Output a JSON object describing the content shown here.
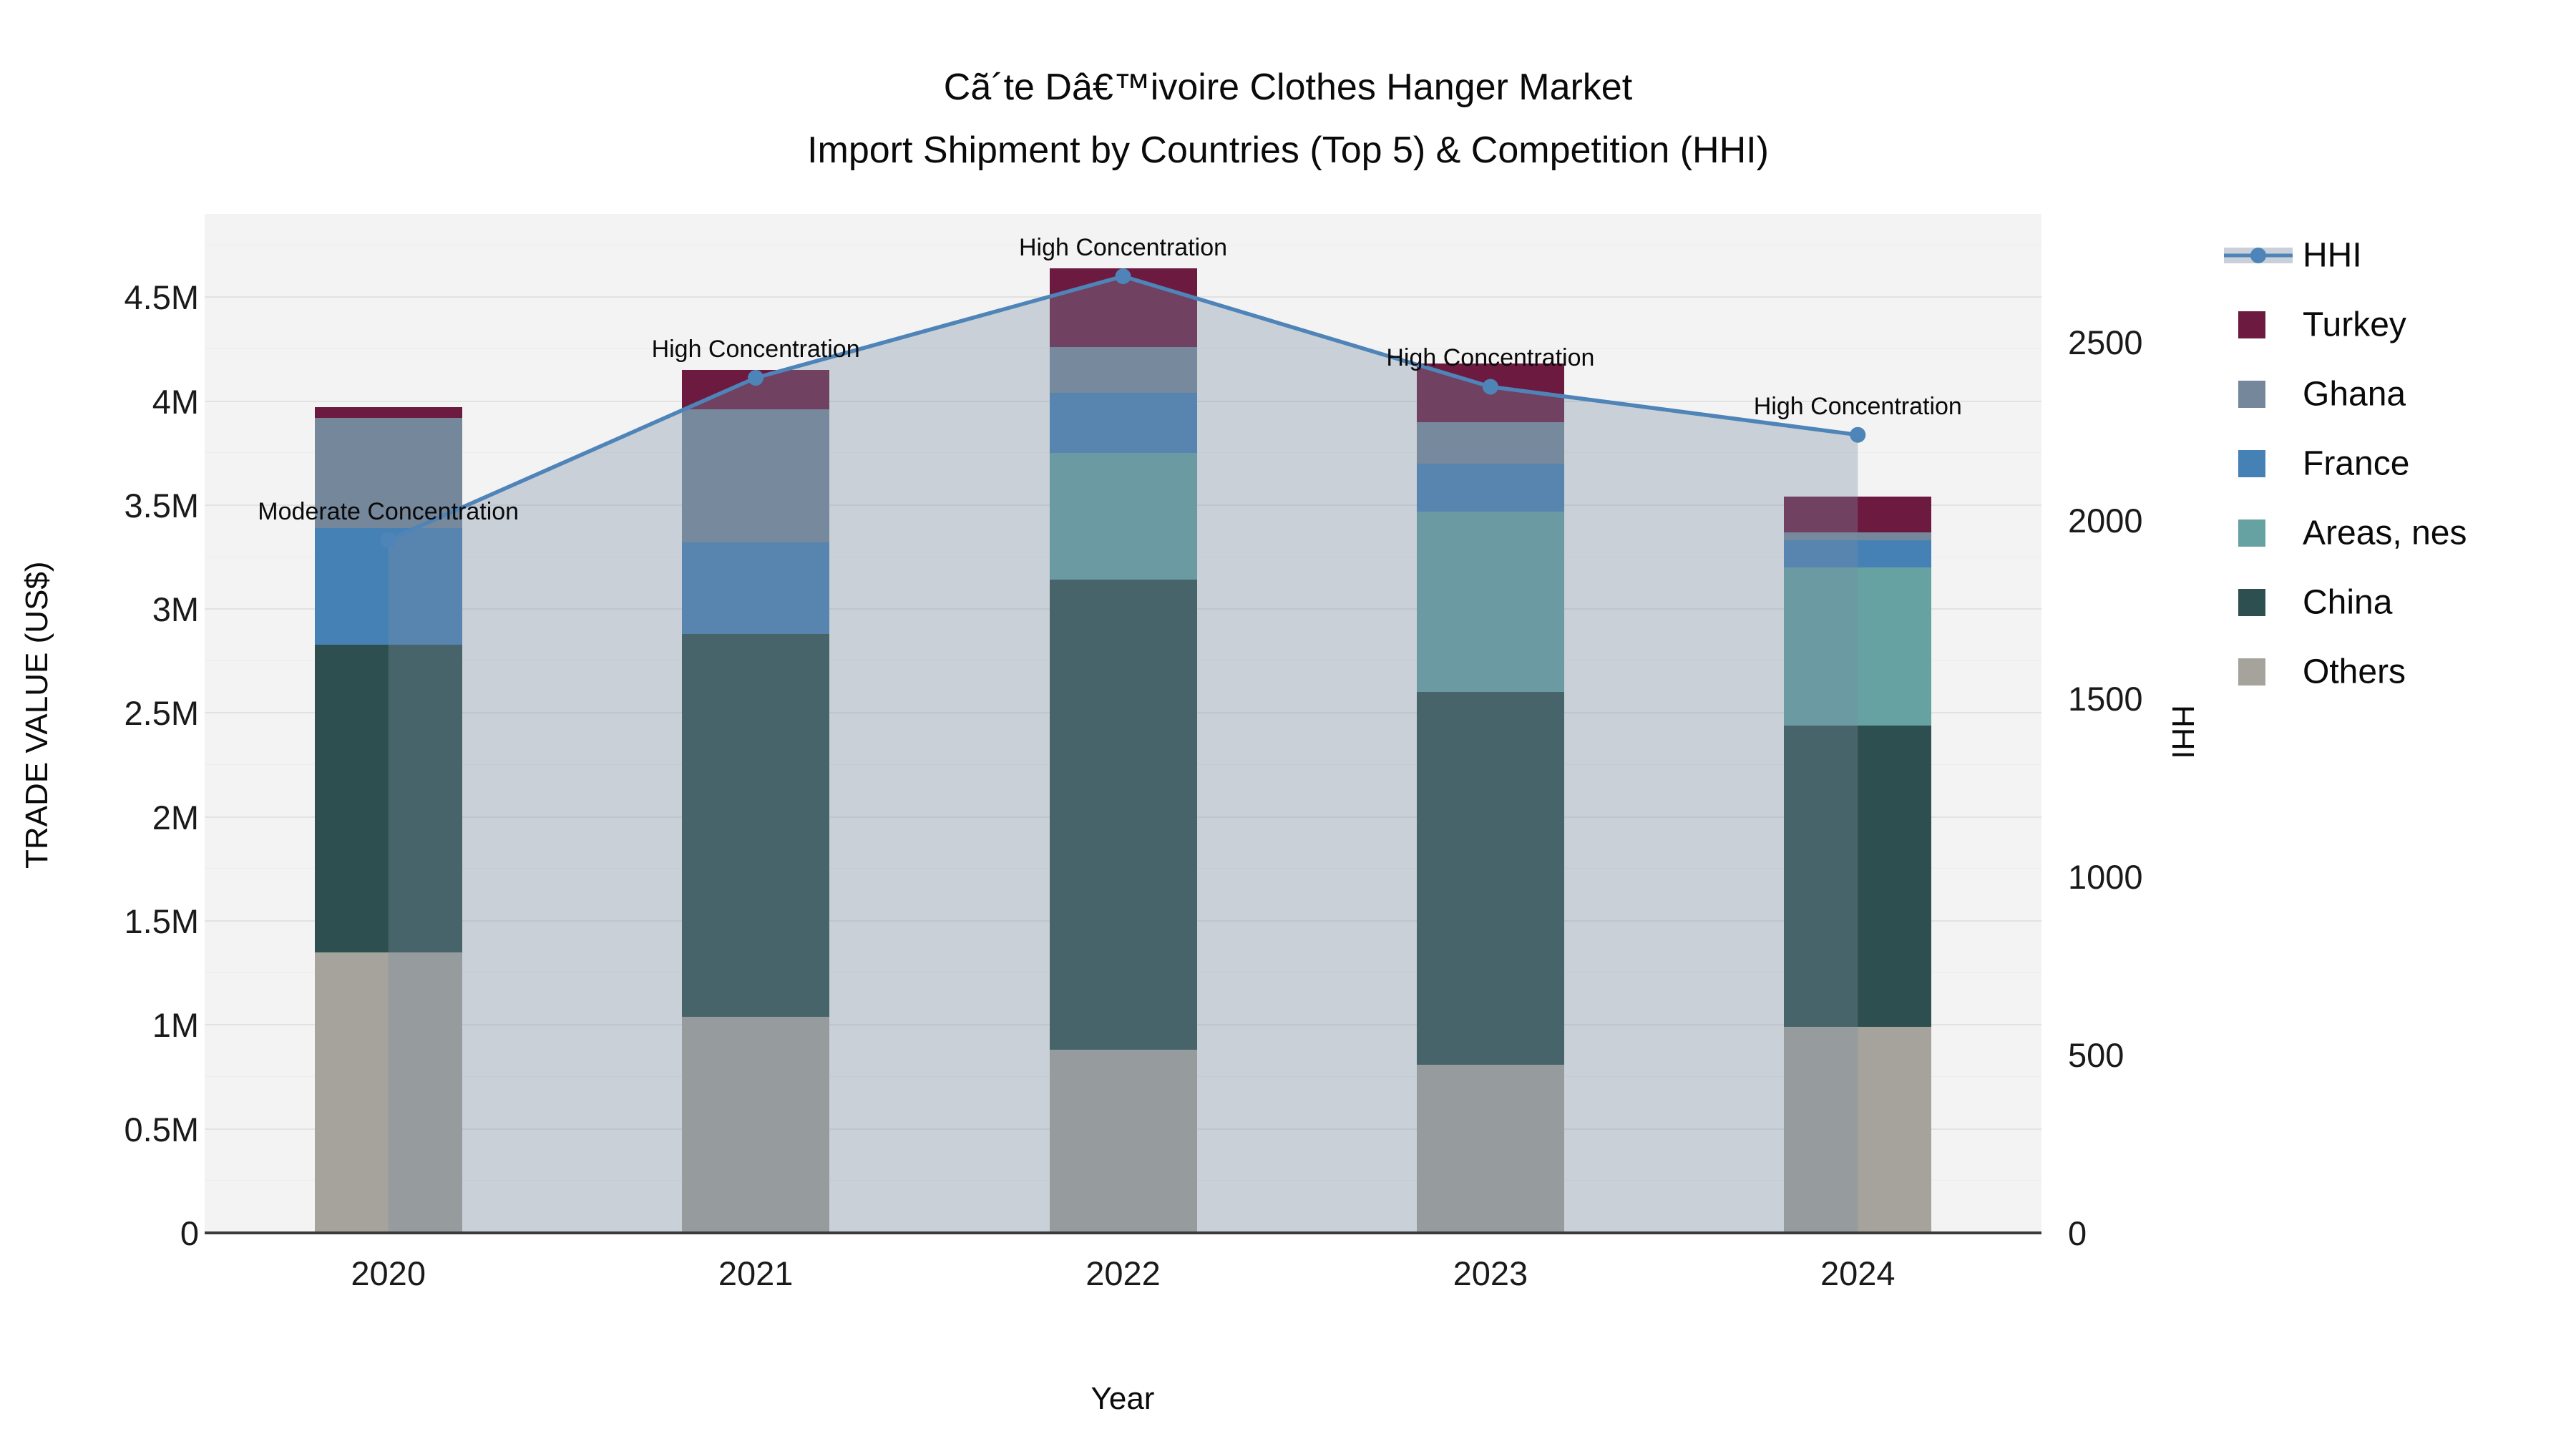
{
  "title": {
    "line1": "Cã´te Dâ€™ivoire Clothes Hanger Market",
    "line2": "Import Shipment by Countries (Top 5) & Competition (HHI)"
  },
  "chart_data": {
    "type": "bar",
    "subtype": "stacked-bars-with-line-overlay",
    "categories": [
      "2020",
      "2021",
      "2022",
      "2023",
      "2024"
    ],
    "series": [
      {
        "name": "Others",
        "color": "#A6A39D",
        "values": [
          1.35,
          1.04,
          0.88,
          0.81,
          0.99
        ]
      },
      {
        "name": "China",
        "color": "#2E4F50",
        "values": [
          1.48,
          1.84,
          2.26,
          1.79,
          1.45
        ]
      },
      {
        "name": "Areas, nes",
        "color": "#67A2A3",
        "values": [
          0,
          0,
          0.61,
          0.87,
          0.76
        ]
      },
      {
        "name": "France",
        "color": "#4681B6",
        "values": [
          0.56,
          0.44,
          0.29,
          0.23,
          0.13
        ]
      },
      {
        "name": "Ghana",
        "color": "#75879B",
        "values": [
          0.53,
          0.64,
          0.22,
          0.2,
          0.04
        ]
      },
      {
        "name": "Turkey",
        "color": "#6C1A40",
        "values": [
          0.05,
          0.19,
          0.38,
          0.28,
          0.17
        ]
      }
    ],
    "line_series": {
      "name": "HHI",
      "color": "#4E84B8",
      "fill_color": "rgba(121,142,160,0.34)",
      "values": [
        1945,
        2400,
        2685,
        2375,
        2240
      ]
    },
    "annotations": [
      "Moderate Concentration",
      "High Concentration",
      "High Concentration",
      "High Concentration",
      "High Concentration"
    ],
    "left_axis": {
      "label": "TRADE VALUE (US$)",
      "tick_labels": [
        "0",
        "0.5M",
        "1M",
        "1.5M",
        "2M",
        "2.5M",
        "3M",
        "3.5M",
        "4M",
        "4.5M"
      ],
      "tick_values": [
        0,
        0.5,
        1,
        1.5,
        2,
        2.5,
        3,
        3.5,
        4,
        4.5
      ],
      "unit": "M US$",
      "range_max": 4.9
    },
    "right_axis": {
      "label": "HHI",
      "tick_labels": [
        "0",
        "500",
        "1000",
        "1500",
        "2000",
        "2500"
      ],
      "tick_values": [
        0,
        500,
        1000,
        1500,
        2000,
        2500
      ],
      "range_max": 2860
    },
    "x_axis": {
      "label": "Year"
    },
    "legend": [
      {
        "label": "HHI",
        "swatch": "line",
        "color": "#4E84B8"
      },
      {
        "label": "Turkey",
        "swatch": "box",
        "color": "#6C1A40"
      },
      {
        "label": "Ghana",
        "swatch": "box",
        "color": "#75879B"
      },
      {
        "label": "France",
        "swatch": "box",
        "color": "#4681B6"
      },
      {
        "label": "Areas, nes",
        "swatch": "box",
        "color": "#67A2A3"
      },
      {
        "label": "China",
        "swatch": "box",
        "color": "#2E4F50"
      },
      {
        "label": "Others",
        "swatch": "box",
        "color": "#A6A39D"
      }
    ],
    "grid": {
      "major_step": 0.5,
      "minor_step": 0.25,
      "major_color": "#E2E2E2",
      "minor_color": "#ECECEC"
    },
    "plot_bg": "#F3F3F3"
  }
}
